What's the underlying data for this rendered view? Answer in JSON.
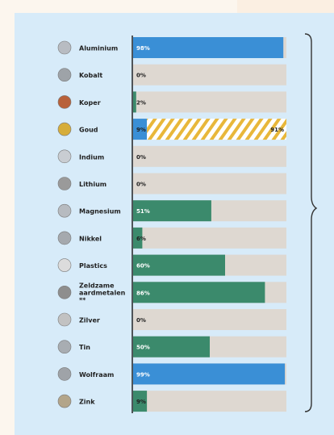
{
  "colors": {
    "background": "#fcf6ee",
    "panel": "#d7ebf9",
    "track": "#ded8d1",
    "blue": "#3a8fd6",
    "green": "#3b8a6c",
    "stripe_yellow": "#e8b73a",
    "axis": "#222222",
    "label": "#1f1f1f"
  },
  "chart_data": {
    "type": "bar",
    "orientation": "horizontal",
    "unit": "%",
    "xlim": [
      0,
      100
    ],
    "grid": false,
    "legend": "none",
    "categories": [
      "Aluminium",
      "Kobalt",
      "Koper",
      "Goud",
      "Indium",
      "Lithium",
      "Magnesium",
      "Nikkel",
      "Plastics",
      "Zeldzame aardmetalen **",
      "Zilver",
      "Tin",
      "Wolfraam",
      "Zink"
    ],
    "values": [
      98,
      0,
      2,
      9,
      0,
      0,
      51,
      6,
      60,
      86,
      0,
      50,
      99,
      9
    ],
    "value_labels": [
      "98%",
      "0%",
      "2%",
      "9%",
      "0%",
      "0%",
      "51%",
      "6%",
      "60%",
      "86%",
      "0%",
      "50%",
      "99%",
      "9%"
    ],
    "bar_colors": [
      "blue",
      "none",
      "green",
      "blue",
      "none",
      "none",
      "green",
      "green",
      "green",
      "green",
      "none",
      "green",
      "blue",
      "green"
    ],
    "secondary": {
      "category": "Goud",
      "value": 91,
      "label": "91%",
      "style": "striped-yellow"
    }
  }
}
